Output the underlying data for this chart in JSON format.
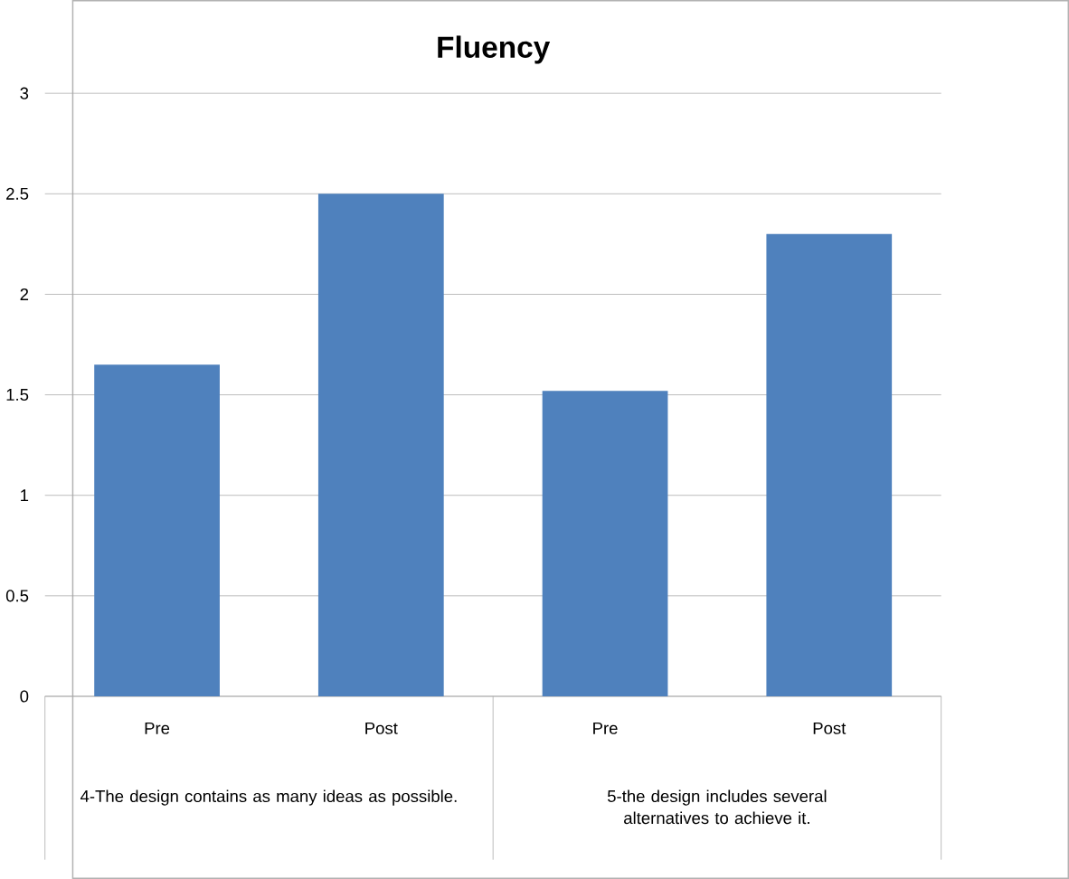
{
  "chart_data": {
    "type": "bar",
    "title": "Fluency",
    "categories": [
      "Pre",
      "Post",
      "Pre",
      "Post"
    ],
    "values": [
      1.65,
      2.5,
      1.52,
      2.3
    ],
    "color": "#4f81bd",
    "ylim": [
      0,
      3
    ],
    "yticks": [
      0,
      0.5,
      1,
      1.5,
      2,
      2.5,
      3
    ],
    "grid": "y",
    "annotations": [
      "4-The design contains as many ideas as possible.",
      "5-the design includes several alternatives to achieve it."
    ]
  }
}
